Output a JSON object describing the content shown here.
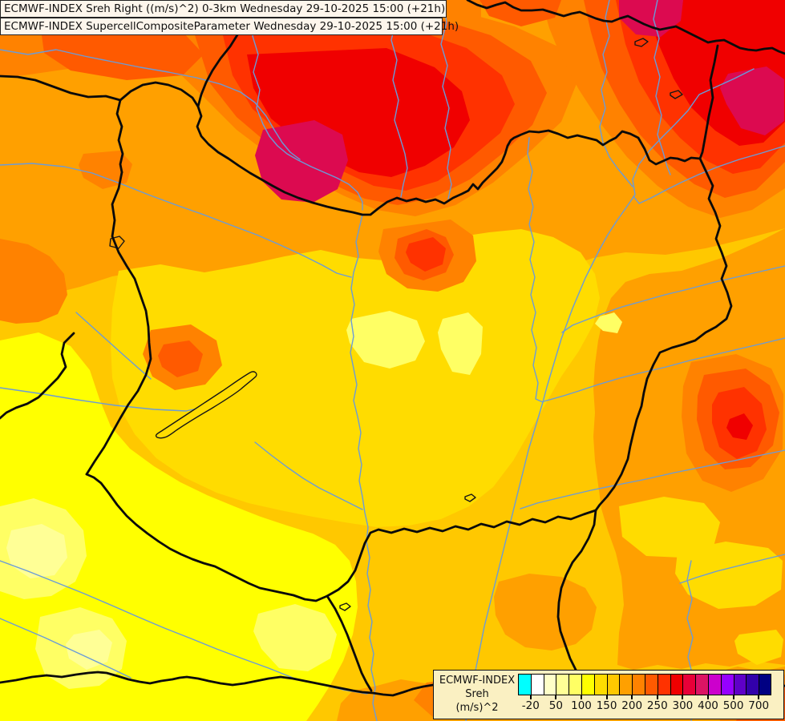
{
  "titles": {
    "line1": "ECMWF-INDEX Sreh Right ((m/s)^2) 0-3km Wednesday 29-10-2025 15:00 (+21h)",
    "line2": "ECMWF-INDEX SupercellCompositeParameter Wednesday 29-10-2025 15:00 (+21h)"
  },
  "legend": {
    "product": "ECMWF-INDEX",
    "variable": "Sreh",
    "units": "(m/s)^2",
    "colorbar": {
      "colors": [
        "#00FFFF",
        "#FFFFFF",
        "#FFFFC8",
        "#FFFF96",
        "#FFFF64",
        "#FFFF00",
        "#FFDC00",
        "#FFC800",
        "#FFA000",
        "#FF8200",
        "#FF5A00",
        "#FF3200",
        "#F00000",
        "#E80038",
        "#DC1464",
        "#CC00CC",
        "#9600FF",
        "#5F00C8",
        "#3200AA",
        "#000082"
      ],
      "tick_labels": [
        "-20",
        "50",
        "100",
        "150",
        "200",
        "250",
        "300",
        "400",
        "500",
        "700"
      ],
      "tick_boundary_indices": [
        1,
        3,
        5,
        7,
        9,
        11,
        13,
        15,
        17,
        19
      ]
    }
  },
  "map_colors": {
    "base": "#FFC800",
    "orange": "#FFA000",
    "dark_orange": "#FF8200",
    "red_orange": "#FF5A00",
    "strong_red_orange": "#FF3200",
    "red": "#F00000",
    "crimson": "#DC0A50",
    "gold": "#FFDC00",
    "yellow": "#FFFF00",
    "light_yellow": "#FFFF64",
    "pale_yellow": "#FFFF96",
    "border": "#0A0A0A",
    "river": "#6A9BD8"
  }
}
